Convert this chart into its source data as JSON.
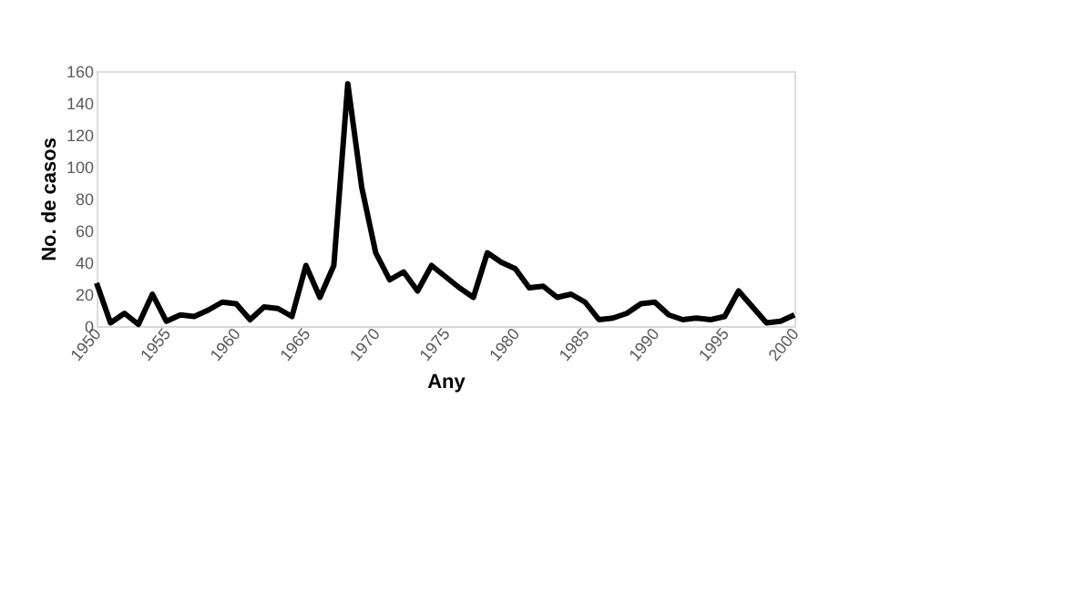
{
  "chart_data": {
    "type": "line",
    "xlabel": "Any",
    "ylabel": "No. de casos",
    "x": [
      1950,
      1951,
      1952,
      1953,
      1954,
      1955,
      1956,
      1957,
      1958,
      1959,
      1960,
      1961,
      1962,
      1963,
      1964,
      1965,
      1966,
      1967,
      1968,
      1969,
      1970,
      1971,
      1972,
      1973,
      1974,
      1975,
      1976,
      1977,
      1978,
      1979,
      1980,
      1981,
      1982,
      1983,
      1984,
      1985,
      1986,
      1987,
      1988,
      1989,
      1990,
      1991,
      1992,
      1993,
      1994,
      1995,
      1996,
      1997,
      1998,
      1999,
      2000
    ],
    "series": [
      {
        "color": "#000000",
        "values": [
          27,
          2,
          8,
          1,
          20,
          3,
          7,
          6,
          10,
          15,
          14,
          4,
          12,
          11,
          6,
          38,
          18,
          38,
          152,
          87,
          46,
          29,
          34,
          22,
          38,
          31,
          24,
          18,
          46,
          40,
          36,
          24,
          25,
          18,
          20,
          15,
          4,
          5,
          8,
          14,
          15,
          7,
          4,
          5,
          4,
          6,
          22,
          12,
          2,
          3,
          7
        ]
      }
    ],
    "xlim": [
      1950,
      2000
    ],
    "xticks": [
      1950,
      1955,
      1960,
      1965,
      1970,
      1975,
      1980,
      1985,
      1990,
      1995,
      2000
    ],
    "ylim": [
      0,
      160
    ],
    "yticks": [
      0,
      20,
      40,
      60,
      80,
      100,
      120,
      140,
      160
    ],
    "grid": false,
    "legend": false,
    "marker": "none",
    "line_style": "solid"
  }
}
